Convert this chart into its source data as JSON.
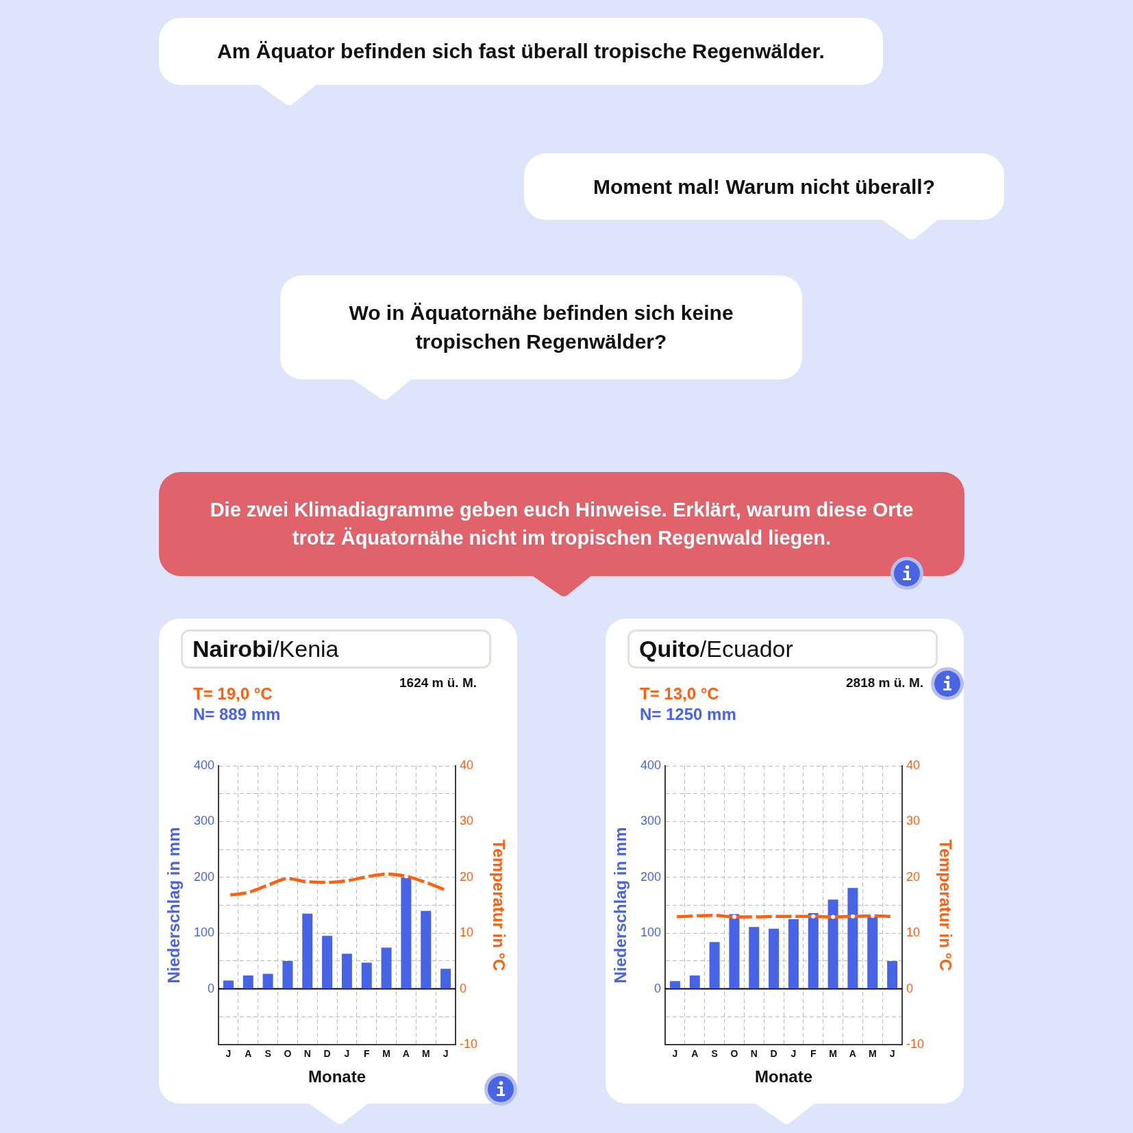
{
  "chart_data": [
    {
      "type": "other",
      "annotations": [
        "Am Äquator befinden sich fast überall tropische Regenwälder.",
        "Moment mal! Warum nicht überall?",
        "Wo in Äquatornähe befinden sich keine tropischen Regenwälder?",
        "Die zwei Klimadiagramme geben euch Hinweise. Erklärt, warum diese Orte trotz Äquatornähe nicht im tropischen Regenwald liegen."
      ]
    },
    {
      "type": "bar",
      "title": "Nairobi/Kenia",
      "annotations": [
        "1624 m ü. M.",
        "T= 19,0 °C",
        "N= 889 mm"
      ],
      "xlabel": "Monate",
      "ylabel": "Niederschlag in mm",
      "y2label": "Temperatur in °C",
      "categories": [
        "J",
        "A",
        "S",
        "O",
        "N",
        "D",
        "J",
        "F",
        "M",
        "A",
        "M",
        "J"
      ],
      "series": [
        {
          "type": "bar",
          "color": "#4763e6",
          "values": [
            15,
            24,
            27,
            50,
            135,
            95,
            63,
            47,
            74,
            200,
            140,
            36
          ]
        },
        {
          "type": "line",
          "axis": "y2",
          "color": "#ff5f0f",
          "values": [
            16.8,
            17.3,
            18.6,
            19.8,
            19.2,
            19.1,
            19.4,
            20.1,
            20.6,
            20.2,
            19.1,
            17.7
          ]
        }
      ],
      "ylim": [
        -100,
        400
      ],
      "yticks": [
        {
          "value": -50,
          "label": null
        },
        0,
        {
          "value": 50,
          "label": null
        },
        100,
        {
          "value": 150,
          "label": null
        },
        200,
        {
          "value": 250,
          "label": null
        },
        300,
        {
          "value": 350,
          "label": null
        },
        400
      ],
      "y2lim": [
        -10,
        40
      ],
      "y2ticks": [
        -10,
        0,
        10,
        20,
        30,
        40
      ],
      "grid": true,
      "legend": false,
      "marker": "circle",
      "ref_lines": [
        {
          "axis": "y",
          "value": 0,
          "color": "#000000"
        }
      ]
    },
    {
      "type": "bar",
      "title": "Quito/Ecuador",
      "annotations": [
        "2818 m ü. M.",
        "T= 13,0 °C",
        "N= 1250 mm"
      ],
      "xlabel": "Monate",
      "ylabel": "Niederschlag in mm",
      "y2label": "Temperatur in °C",
      "categories": [
        "J",
        "A",
        "S",
        "O",
        "N",
        "D",
        "J",
        "F",
        "M",
        "A",
        "M",
        "J"
      ],
      "series": [
        {
          "type": "bar",
          "color": "#4763e6",
          "values": [
            14,
            24,
            84,
            134,
            111,
            108,
            125,
            136,
            160,
            181,
            131,
            50
          ]
        },
        {
          "type": "line",
          "axis": "y2",
          "color": "#ff5f0f",
          "values": [
            12.9,
            13.1,
            13.2,
            12.9,
            12.9,
            13.0,
            13.0,
            13.0,
            12.9,
            13.0,
            13.1,
            13.0
          ]
        }
      ],
      "ylim": [
        -100,
        400
      ],
      "yticks": [
        {
          "value": -50,
          "label": null
        },
        0,
        {
          "value": 50,
          "label": null
        },
        100,
        {
          "value": 150,
          "label": null
        },
        200,
        {
          "value": 250,
          "label": null
        },
        300,
        {
          "value": 350,
          "label": null
        },
        400
      ],
      "y2lim": [
        -10,
        40
      ],
      "y2ticks": [
        -10,
        0,
        10,
        20,
        30,
        40
      ],
      "grid": true,
      "legend": false,
      "marker": "circle",
      "ref_lines": [
        {
          "axis": "y",
          "value": 0,
          "color": "#000000"
        }
      ]
    }
  ]
}
